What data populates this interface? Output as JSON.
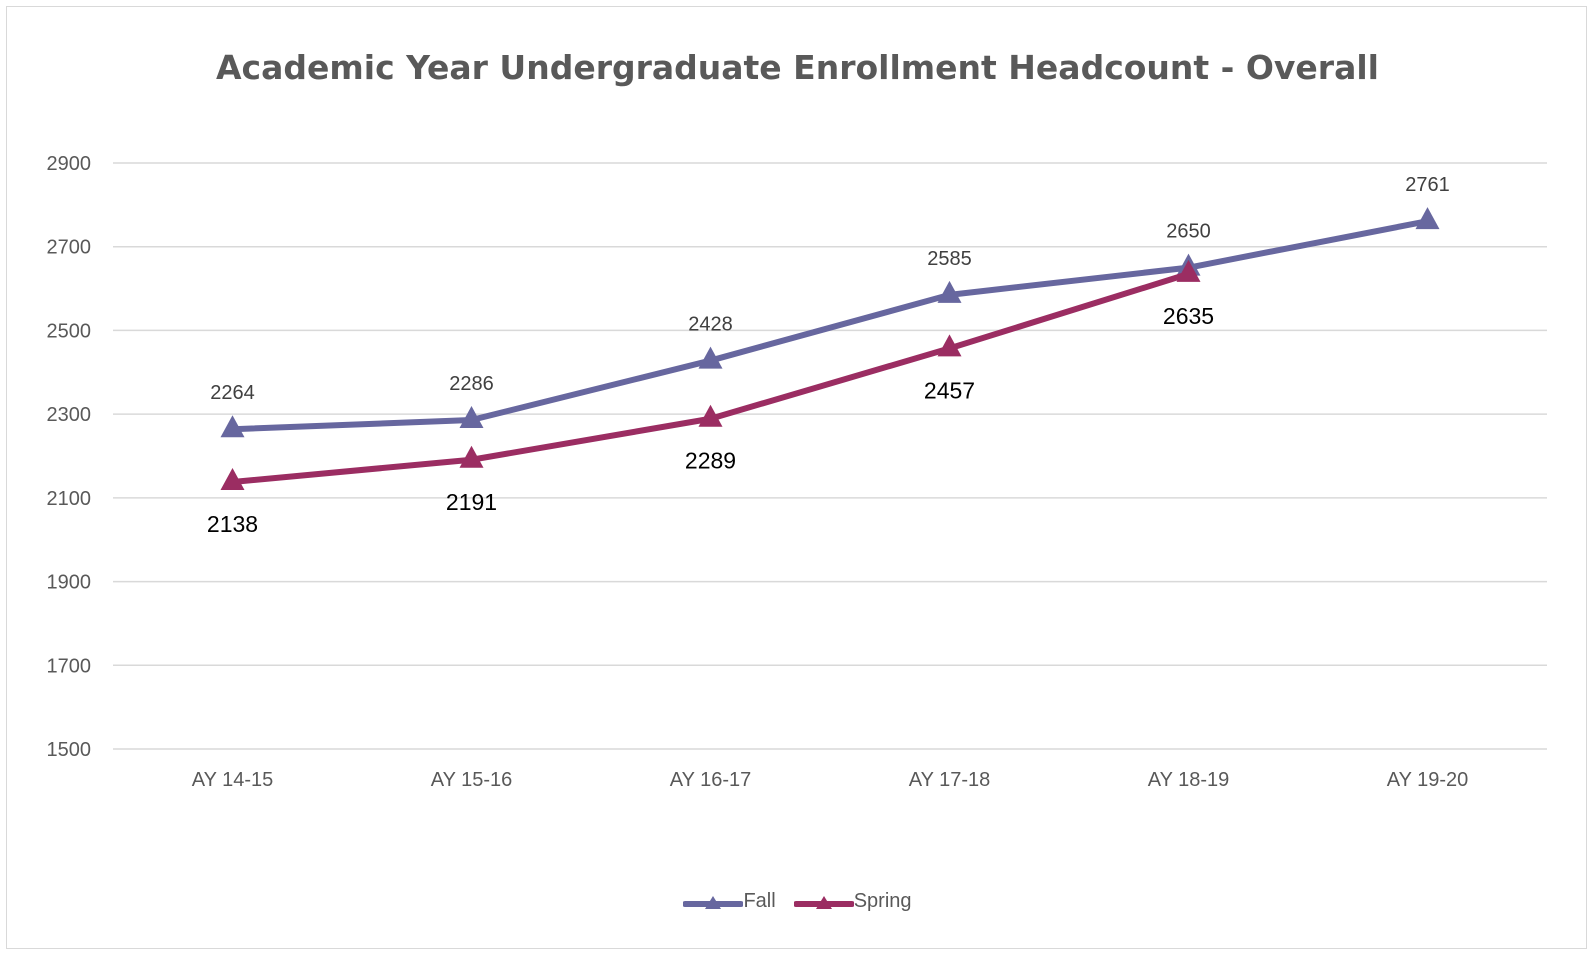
{
  "chart_data": {
    "type": "line",
    "title": "Academic Year Undergraduate Enrollment Headcount - Overall",
    "categories": [
      "AY 14-15",
      "AY 15-16",
      "AY 16-17",
      "AY 17-18",
      "AY 18-19",
      "AY 19-20"
    ],
    "series": [
      {
        "name": "Fall",
        "color": "#67679f",
        "values": [
          2264,
          2286,
          2428,
          2585,
          2650,
          2761
        ]
      },
      {
        "name": "Spring",
        "color": "#9b2d62",
        "values": [
          2138,
          2191,
          2289,
          2457,
          2635,
          null
        ]
      }
    ],
    "ylim": [
      1500,
      2900
    ],
    "yticks": [
      1500,
      1700,
      1900,
      2100,
      2300,
      2500,
      2700,
      2900
    ],
    "grid": true,
    "legend": "bottom",
    "marker": "triangle",
    "data_labels": true
  }
}
